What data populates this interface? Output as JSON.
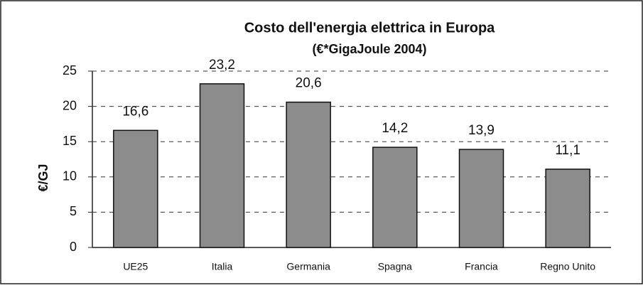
{
  "chart_data": {
    "type": "bar",
    "title": "Costo dell'energia elettrica in Europa",
    "subtitle": "(€*GigaJoule 2004)",
    "y_label": "€/GJ",
    "categories": [
      "UE25",
      "Italia",
      "Germania",
      "Spagna",
      "Francia",
      "Regno Unito"
    ],
    "values": [
      16.6,
      23.2,
      20.6,
      14.2,
      13.9,
      11.1
    ],
    "value_labels": [
      "16,6",
      "23,2",
      "20,6",
      "14,2",
      "13,9",
      "11,1"
    ],
    "color": "#8c8c8c",
    "ylim": [
      0,
      25
    ],
    "yticks": [
      0,
      5,
      10,
      15,
      20,
      25
    ],
    "grid": true
  }
}
